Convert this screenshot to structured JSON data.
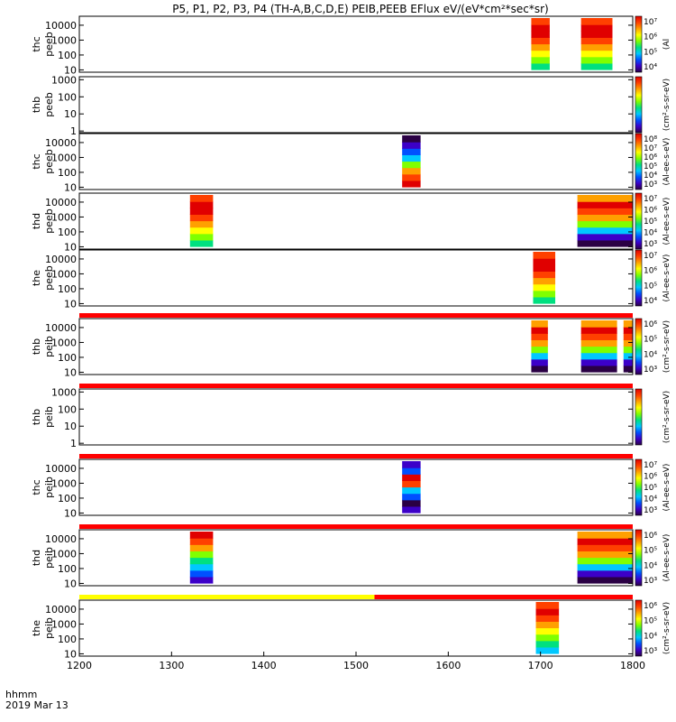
{
  "chart_data": {
    "type": "heatmap",
    "title": "P5, P1, P2, P3, P4 (TH-A,B,C,D,E) PEIB,PEEB EFlux eV/(eV*cm²*sec*sr)",
    "xlabel": "hhmm",
    "date_label": "2019 Mar 13",
    "x_range": [
      1200,
      1800
    ],
    "x_ticks": [
      "1200",
      "1300",
      "1400",
      "1500",
      "1600",
      "1700",
      "1800"
    ],
    "y_scale": "log",
    "spectrum_colors": [
      "#2a0044",
      "#3c00c8",
      "#0050ff",
      "#00c8ff",
      "#00e080",
      "#80ff00",
      "#ffff00",
      "#ffa000",
      "#ff4000",
      "#e00000"
    ],
    "flag_colors": {
      "ok": "#ff0000",
      "caution": "#ffff00",
      "gap": "#000000"
    },
    "panels": [
      {
        "probe": "thc",
        "species": "peeb",
        "y_ticks": [
          "10",
          "100",
          "1000",
          "10000"
        ],
        "y_range": [
          7,
          40000
        ],
        "colorbar": {
          "ticks": [
            "10⁴",
            "10⁵",
            "10⁶",
            "10⁷"
          ],
          "label": "(Al "
        },
        "segments": [
          {
            "t0": 1690,
            "t1": 1710,
            "profile": "hot"
          },
          {
            "t0": 1744,
            "t1": 1778,
            "profile": "hot"
          }
        ]
      },
      {
        "probe": "thb",
        "species": "peeb",
        "y_ticks": [
          "1",
          "10",
          "100",
          "1000"
        ],
        "y_range": [
          0.8,
          1500
        ],
        "colorbar": {
          "ticks": [],
          "label": "(cm²-s-sr-eV)"
        },
        "segments": []
      },
      {
        "probe": "thc",
        "species": "peeb",
        "y_ticks": [
          "10",
          "100",
          "1000",
          "10000"
        ],
        "y_range": [
          7,
          40000
        ],
        "colorbar": {
          "ticks": [
            "10³",
            "10⁴",
            "10⁵",
            "10⁶",
            "10⁷",
            "10⁸"
          ],
          "label": "(Al-ee-s-eV)"
        },
        "segments": [
          {
            "t0": 1550,
            "t1": 1570,
            "profile": "inverted"
          }
        ]
      },
      {
        "probe": "thd",
        "species": "peeb",
        "y_ticks": [
          "10",
          "100",
          "1000",
          "10000"
        ],
        "y_range": [
          7,
          40000
        ],
        "colorbar": {
          "ticks": [
            "10³",
            "10⁴",
            "10⁵",
            "10⁶",
            "10⁷"
          ],
          "label": "(Al-ee-s-eV)"
        },
        "segments": [
          {
            "t0": 1320,
            "t1": 1345,
            "profile": "hot"
          },
          {
            "t0": 1740,
            "t1": 1800,
            "profile": "mixed"
          }
        ]
      },
      {
        "probe": "the",
        "species": "peeb",
        "y_ticks": [
          "10",
          "100",
          "1000",
          "10000"
        ],
        "y_range": [
          7,
          40000
        ],
        "colorbar": {
          "ticks": [
            "10⁴",
            "10⁵",
            "10⁶",
            "10⁷"
          ],
          "label": "(Al-ee-s-eV)"
        },
        "segments": [
          {
            "t0": 1692,
            "t1": 1716,
            "profile": "hot"
          }
        ]
      },
      {
        "probe": "thb",
        "species": "peib",
        "y_ticks": [
          "10",
          "100",
          "1000",
          "10000"
        ],
        "y_range": [
          7,
          40000
        ],
        "colorbar": {
          "ticks": [
            "10³",
            "10⁴",
            "10⁵",
            "10⁶"
          ],
          "label": "(cm²-s-sr-eV)"
        },
        "flag_above": [
          {
            "t0": 1200,
            "t1": 1800,
            "color": "ok"
          }
        ],
        "segments": [
          {
            "t0": 1690,
            "t1": 1708,
            "profile": "mixed"
          },
          {
            "t0": 1744,
            "t1": 1783,
            "profile": "mixed"
          },
          {
            "t0": 1790,
            "t1": 1800,
            "profile": "mixed"
          }
        ]
      },
      {
        "probe": "thb",
        "species": "peib",
        "y_ticks": [
          "1",
          "10",
          "100",
          "1000"
        ],
        "y_range": [
          0.8,
          1500
        ],
        "colorbar": {
          "ticks": [],
          "label": "(cm²-s-sr-eV)"
        },
        "flag_above": [
          {
            "t0": 1200,
            "t1": 1800,
            "color": "ok"
          }
        ],
        "segments": []
      },
      {
        "probe": "thc",
        "species": "peib",
        "y_ticks": [
          "10",
          "100",
          "1000",
          "10000"
        ],
        "y_range": [
          7,
          40000
        ],
        "colorbar": {
          "ticks": [
            "10³",
            "10⁴",
            "10⁵",
            "10⁶",
            "10⁷"
          ],
          "label": "(Al-ee-s-eV)"
        },
        "flag_above": [
          {
            "t0": 1200,
            "t1": 1800,
            "color": "ok"
          }
        ],
        "segments": [
          {
            "t0": 1550,
            "t1": 1570,
            "profile": "band"
          }
        ]
      },
      {
        "probe": "thd",
        "species": "peib",
        "y_ticks": [
          "10",
          "100",
          "1000",
          "10000"
        ],
        "y_range": [
          7,
          40000
        ],
        "colorbar": {
          "ticks": [
            "10³",
            "10⁴",
            "10⁵",
            "10⁶"
          ],
          "label": "(Al-ee-s-eV)"
        },
        "flag_above": [
          {
            "t0": 1200,
            "t1": 1800,
            "color": "ok"
          }
        ],
        "segments": [
          {
            "t0": 1320,
            "t1": 1345,
            "profile": "coolmix"
          },
          {
            "t0": 1740,
            "t1": 1800,
            "profile": "mixed"
          }
        ]
      },
      {
        "probe": "the",
        "species": "peib",
        "y_ticks": [
          "10",
          "100",
          "1000",
          "10000"
        ],
        "y_range": [
          7,
          40000
        ],
        "colorbar": {
          "ticks": [
            "10³",
            "10⁴",
            "10⁵",
            "10⁶"
          ],
          "label": "(cm²-s-sr-eV)"
        },
        "flag_above": [
          {
            "t0": 1200,
            "t1": 1520,
            "color": "caution"
          },
          {
            "t0": 1520,
            "t1": 1800,
            "color": "ok"
          }
        ],
        "segments": [
          {
            "t0": 1695,
            "t1": 1720,
            "profile": "hotcore"
          }
        ]
      }
    ]
  }
}
